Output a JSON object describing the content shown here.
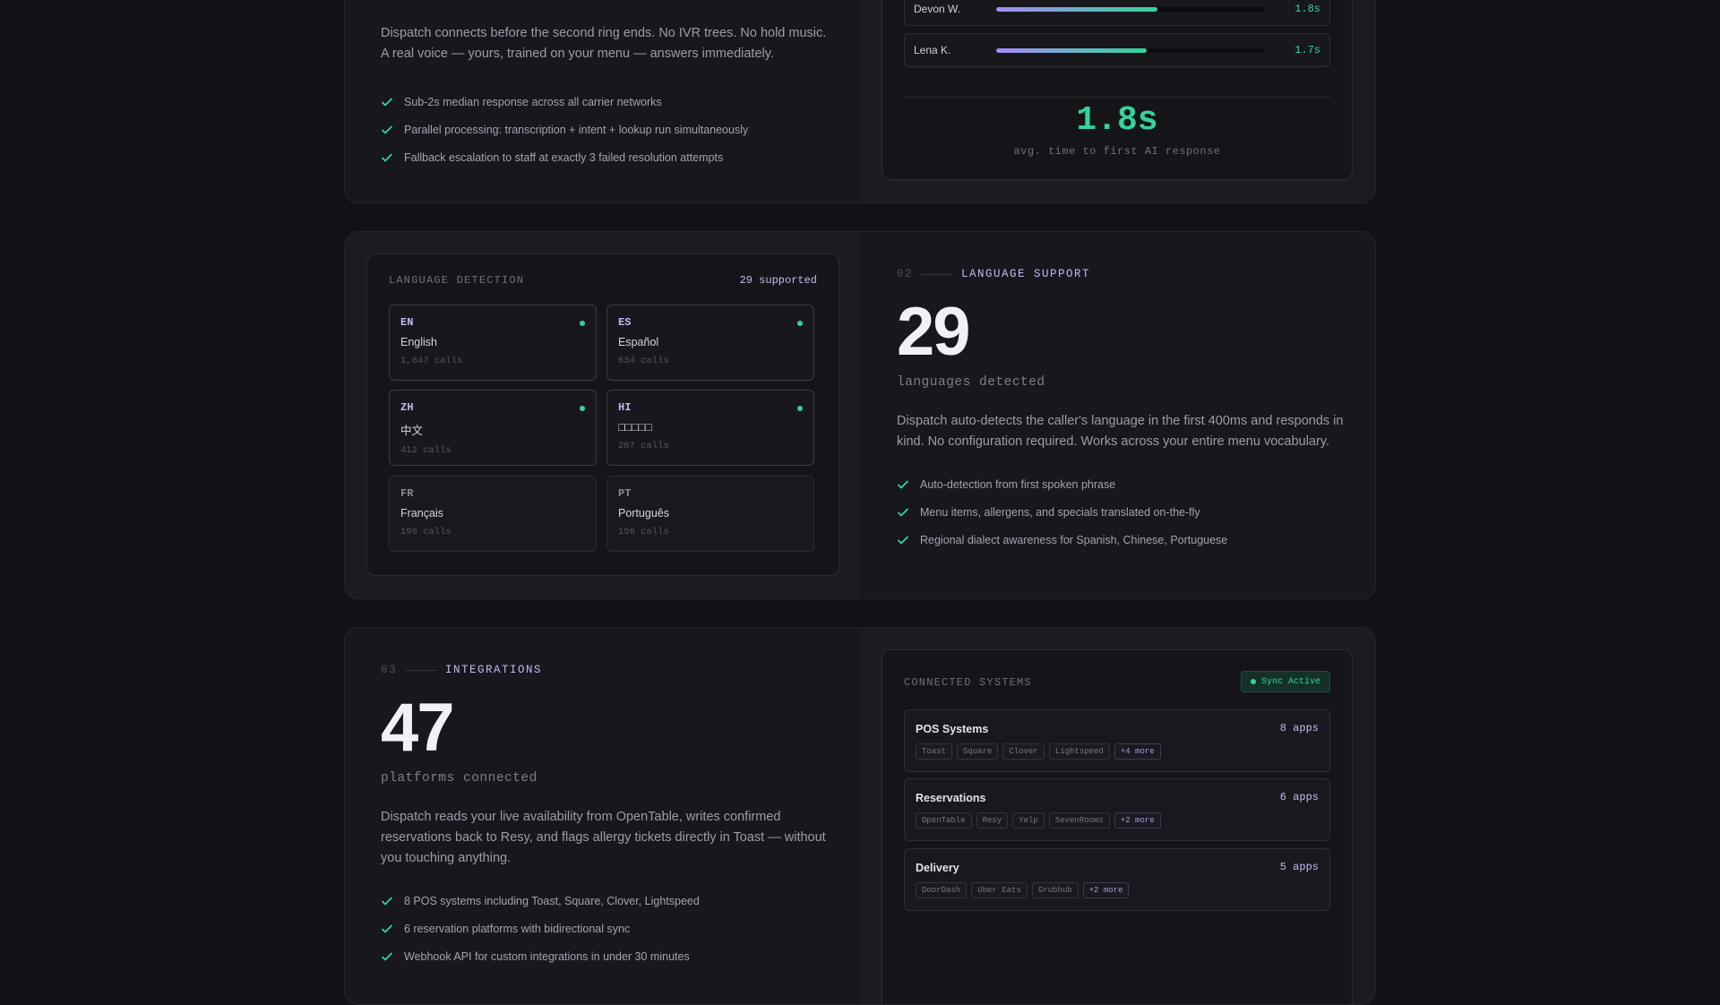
{
  "section1": {
    "paragraph": "Dispatch connects before the second ring ends. No IVR trees. No hold music. A real voice — yours, trained on your menu — answers immediately.",
    "bullets": [
      "Sub-2s median response across all carrier networks",
      "Parallel processing: transcription + intent + lookup run simultaneously",
      "Fallback escalation to staff at exactly 3 failed resolution attempts"
    ],
    "response_rows": [
      {
        "name": "Devon W.",
        "value": "1.8s",
        "fill": 0.6
      },
      {
        "name": "Lena K.",
        "value": "1.7s",
        "fill": 0.56
      }
    ],
    "avg_value": "1.8s",
    "avg_label": "avg. time to first AI response"
  },
  "section2": {
    "panel_title": "LANGUAGE DETECTION",
    "panel_badge": "29 supported",
    "languages": [
      {
        "code": "EN",
        "name": "English",
        "calls": "1,847 calls",
        "active": true
      },
      {
        "code": "ES",
        "name": "Español",
        "calls": "634 calls",
        "active": true
      },
      {
        "code": "ZH",
        "name": "中文",
        "calls": "412 calls",
        "active": true
      },
      {
        "code": "HI",
        "name": "□□□□□",
        "calls": "287 calls",
        "active": true
      },
      {
        "code": "FR",
        "name": "Français",
        "calls": "198 calls",
        "active": false
      },
      {
        "code": "PT",
        "name": "Português",
        "calls": "156 calls",
        "active": false
      }
    ],
    "eyebrow_num": "02",
    "eyebrow_label": "LANGUAGE SUPPORT",
    "big_number": "29",
    "big_caption": "languages detected",
    "paragraph": "Dispatch auto-detects the caller's language in the first 400ms and responds in kind. No configuration required. Works across your entire menu vocabulary.",
    "bullets": [
      "Auto-detection from first spoken phrase",
      "Menu items, allergens, and specials translated on-the-fly",
      "Regional dialect awareness for Spanish, Chinese, Portuguese"
    ]
  },
  "section3": {
    "eyebrow_num": "03",
    "eyebrow_label": "INTEGRATIONS",
    "big_number": "47",
    "big_caption": "platforms connected",
    "paragraph": "Dispatch reads your live availability from OpenTable, writes confirmed reservations back to Resy, and flags allergy tickets directly in Toast — without you touching anything.",
    "bullets": [
      "8 POS systems including Toast, Square, Clover, Lightspeed",
      "6 reservation platforms with bidirectional sync",
      "Webhook API for custom integrations in under 30 minutes"
    ],
    "panel_title": "CONNECTED SYSTEMS",
    "sync_label": "Sync Active",
    "systems": [
      {
        "name": "POS Systems",
        "count": "8 apps",
        "tags": [
          "Toast",
          "Square",
          "Clover",
          "Lightspeed"
        ],
        "more": "+4 more"
      },
      {
        "name": "Reservations",
        "count": "6 apps",
        "tags": [
          "OpenTable",
          "Resy",
          "Yelp",
          "SevenRooms"
        ],
        "more": "+2 more"
      },
      {
        "name": "Delivery",
        "count": "5 apps",
        "tags": [
          "DoorDash",
          "Uber Eats",
          "Grubhub"
        ],
        "more": "+2 more"
      }
    ]
  },
  "colors": {
    "accent_green": "#34d399",
    "accent_purple": "#c4b8f0",
    "background": "#111116"
  }
}
